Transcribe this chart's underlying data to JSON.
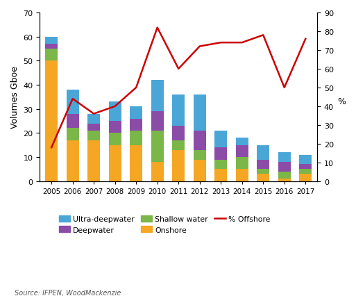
{
  "years": [
    2005,
    2006,
    2007,
    2008,
    2009,
    2010,
    2011,
    2012,
    2013,
    2014,
    2015,
    2016,
    2017
  ],
  "onshore": [
    50,
    17,
    17,
    15,
    15,
    8,
    13,
    9,
    5,
    5,
    3,
    1,
    3
  ],
  "shallow_water": [
    5,
    5,
    4,
    5,
    6,
    13,
    4,
    4,
    4,
    5,
    2,
    3,
    2
  ],
  "deepwater": [
    2,
    6,
    3,
    5,
    5,
    8,
    6,
    8,
    5,
    5,
    4,
    4,
    2
  ],
  "ultra_deepwater": [
    3,
    10,
    4,
    8,
    5,
    13,
    13,
    15,
    7,
    3,
    6,
    4,
    4
  ],
  "pct_offshore": [
    18,
    44,
    36,
    40,
    50,
    82,
    60,
    72,
    74,
    74,
    78,
    50,
    76
  ],
  "colors": {
    "onshore": "#F5A623",
    "shallow_water": "#7AB648",
    "deepwater": "#8B4CA8",
    "ultra_deepwater": "#4BA6D8"
  },
  "line_color": "#CC0000",
  "ylim_left": [
    0,
    70
  ],
  "ylim_right": [
    0,
    90
  ],
  "yticks_left": [
    0,
    10,
    20,
    30,
    40,
    50,
    60,
    70
  ],
  "yticks_right": [
    0,
    10,
    20,
    30,
    40,
    50,
    60,
    70,
    80,
    90
  ],
  "ylabel_left": "Volumes Gboe",
  "ylabel_right": "%",
  "source_text": "Source: IFPEN, WoodMackenzie",
  "bar_width": 0.6
}
